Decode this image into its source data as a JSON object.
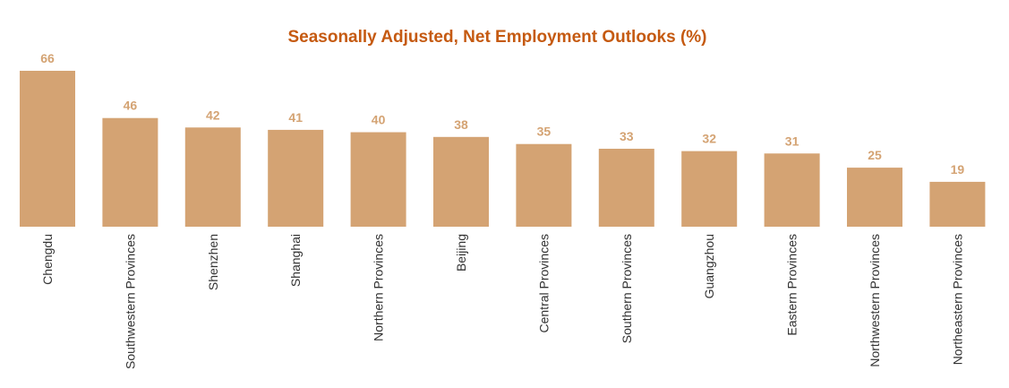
{
  "chart_data": {
    "type": "bar",
    "title": "Seasonally Adjusted, Net Employment Outlooks (%)",
    "categories": [
      "Chengdu",
      "Southwestern Provinces",
      "Shenzhen",
      "Shanghai",
      "Northern Provinces",
      "Beijing",
      "Central Provinces",
      "Southern Provinces",
      "Guangzhou",
      "Eastern Provinces",
      "Northwestern Provinces",
      "Northeastern Provinces"
    ],
    "values": [
      66,
      46,
      42,
      41,
      40,
      38,
      35,
      33,
      32,
      31,
      25,
      19
    ],
    "ylim": [
      0,
      66
    ],
    "grid": false,
    "legend": "none",
    "colors": {
      "bar": "#d4a373",
      "value_label": "#d4a373",
      "title": "#c55a11"
    }
  }
}
